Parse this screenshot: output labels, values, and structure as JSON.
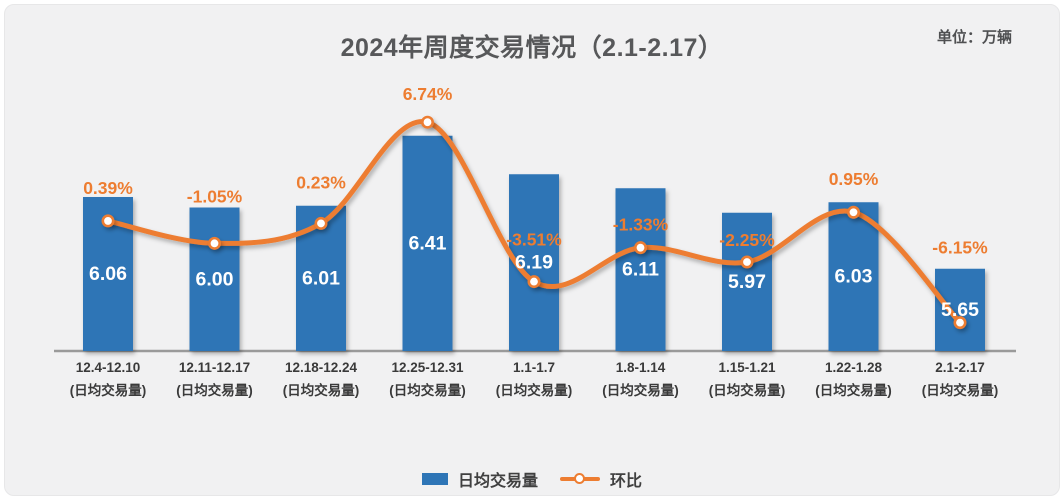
{
  "header": {
    "title": "2024年周度交易情况（2.1-2.17）",
    "unit_label": "单位：万辆"
  },
  "chart_data": {
    "type": "bar",
    "subtype": "combo bar+line, dual axis, smoothed line",
    "title": "2024年周度交易情况（2.1-2.17）",
    "unit": "万辆",
    "categories": [
      "12.4-12.10",
      "12.11-12.17",
      "12.18-12.24",
      "12.25-12.31",
      "1.1-1.7",
      "1.8-1.14",
      "1.15-1.21",
      "1.22-1.28",
      "2.1-2.17"
    ],
    "category_sublabel": "(日均交易量)",
    "series": [
      {
        "name": "日均交易量",
        "type": "bar",
        "axis": "primary",
        "color": "#2E75B6",
        "values": [
          6.06,
          6.0,
          6.01,
          6.41,
          6.19,
          6.11,
          5.97,
          6.03,
          5.65
        ],
        "labels": [
          "6.06",
          "6.00",
          "6.01",
          "6.41",
          "6.19",
          "6.11",
          "5.97",
          "6.03",
          "5.65"
        ]
      },
      {
        "name": "环比",
        "type": "line",
        "axis": "secondary",
        "color": "#ED7D31",
        "values": [
          0.39,
          -1.05,
          0.23,
          6.74,
          -3.51,
          -1.33,
          -2.25,
          0.95,
          -6.15
        ],
        "labels": [
          "0.39%",
          "-1.05%",
          "0.23%",
          "6.74%",
          "-3.51%",
          "-1.33%",
          "-2.25%",
          "0.95%",
          "-6.15%"
        ]
      }
    ],
    "axes": {
      "x": {
        "visible_line": true,
        "tick_labels": true
      },
      "primary_y": {
        "visible": false,
        "approx_range": [
          5.18,
          7.0
        ]
      },
      "secondary_y": {
        "visible": false,
        "approx_range_pct": [
          -8,
          8
        ]
      },
      "gridlines": false
    },
    "legend_position": "bottom"
  },
  "colors": {
    "bar": "#2E75B6",
    "line": "#ED7D31",
    "bar_value_label": "#ffffff",
    "pct_label": "#ED7D31",
    "axis_line": "#9a9a9a",
    "x_tick_label": "#3a3a3a",
    "title": "#57585a",
    "panel_bg": "#f1f1f2"
  }
}
